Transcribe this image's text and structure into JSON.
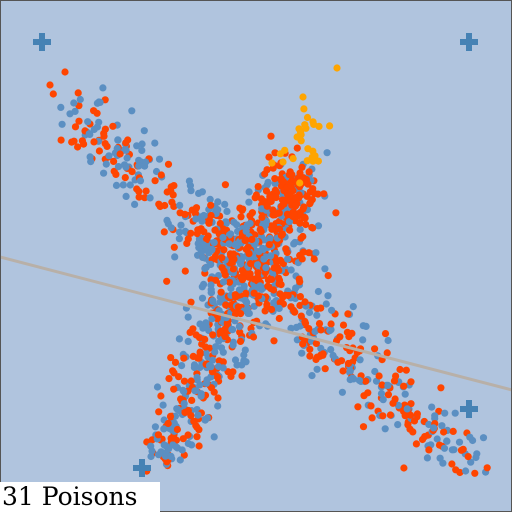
{
  "game": {
    "counter": {
      "value": 31,
      "label": "Poisons"
    }
  },
  "colors": {
    "background": "#b0c4de",
    "border": "#555555",
    "marker": "#4682b4",
    "dot_blue": "#5b8fc2",
    "dot_orange": "#ff4500",
    "dot_gold": "#ffa500",
    "barrier_line": "#b8b0a8"
  },
  "icons": {
    "corner_markers": "plus-cross-icon"
  }
}
